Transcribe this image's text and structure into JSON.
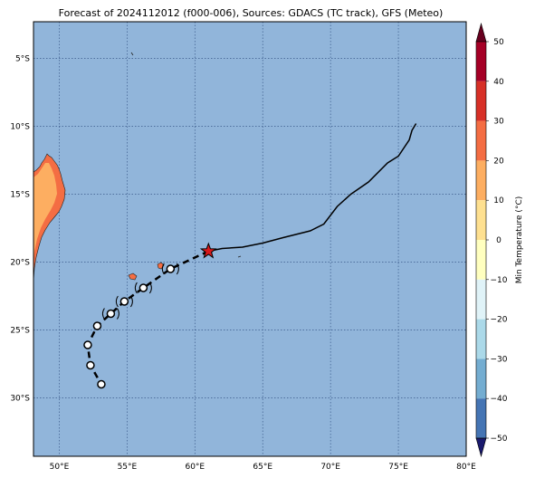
{
  "title": "Forecast of 2024112012 (f000-006), Sources: GDACS (TC track), GFS (Meteo)",
  "map": {
    "lon_range": [
      48.1,
      80.0
    ],
    "lat_range": [
      -34.3,
      -2.3
    ],
    "lon_ticks": [
      50,
      55,
      60,
      65,
      70,
      75,
      80
    ],
    "lon_tick_labels": [
      "50°E",
      "55°E",
      "60°E",
      "65°E",
      "70°E",
      "75°E",
      "80°E"
    ],
    "lat_ticks": [
      -5,
      -10,
      -15,
      -20,
      -25,
      -30
    ],
    "lat_tick_labels": [
      "5°S",
      "10°S",
      "15°S",
      "20°S",
      "25°S",
      "30°S"
    ],
    "ocean_color": "#91b5da",
    "grid": "dotted"
  },
  "colorbar": {
    "label": "Min Temperature (°C)",
    "ticks": [
      50,
      40,
      30,
      20,
      10,
      0,
      -10,
      -20,
      -30,
      -40,
      -50
    ],
    "tick_labels": [
      "50",
      "40",
      "30",
      "20",
      "10",
      "0",
      "−10",
      "−20",
      "−30",
      "−40",
      "−50"
    ],
    "colors": [
      "#a50026",
      "#d73027",
      "#f46d43",
      "#fdae61",
      "#fee090",
      "#ffffbf",
      "#e0f3f8",
      "#abd9e9",
      "#74add1",
      "#4575b4",
      "#313695"
    ]
  },
  "chart_data": {
    "type": "map",
    "current_position": {
      "lon": 61.0,
      "lat": -19.2
    },
    "forecast_track": [
      {
        "lon": 61.0,
        "lat": -19.2
      },
      {
        "lon": 58.2,
        "lat": -20.5
      },
      {
        "lon": 56.2,
        "lat": -21.9
      },
      {
        "lon": 54.8,
        "lat": -22.9
      },
      {
        "lon": 53.8,
        "lat": -23.8
      },
      {
        "lon": 52.8,
        "lat": -24.7
      },
      {
        "lon": 52.1,
        "lat": -26.1
      },
      {
        "lon": 52.3,
        "lat": -27.6
      },
      {
        "lon": 53.1,
        "lat": -29.0
      }
    ],
    "past_track": [
      {
        "lon": 61.0,
        "lat": -19.2
      },
      {
        "lon": 62.0,
        "lat": -19.0
      },
      {
        "lon": 63.5,
        "lat": -18.9
      },
      {
        "lon": 65.0,
        "lat": -18.6
      },
      {
        "lon": 66.5,
        "lat": -18.2
      },
      {
        "lon": 68.5,
        "lat": -17.7
      },
      {
        "lon": 69.5,
        "lat": -17.2
      },
      {
        "lon": 70.5,
        "lat": -15.9
      },
      {
        "lon": 71.5,
        "lat": -15.0
      },
      {
        "lon": 72.8,
        "lat": -14.1
      },
      {
        "lon": 74.2,
        "lat": -12.7
      },
      {
        "lon": 75.0,
        "lat": -12.2
      },
      {
        "lon": 75.8,
        "lat": -11.0
      },
      {
        "lon": 76.0,
        "lat": -10.3
      },
      {
        "lon": 76.3,
        "lat": -9.8
      }
    ]
  }
}
